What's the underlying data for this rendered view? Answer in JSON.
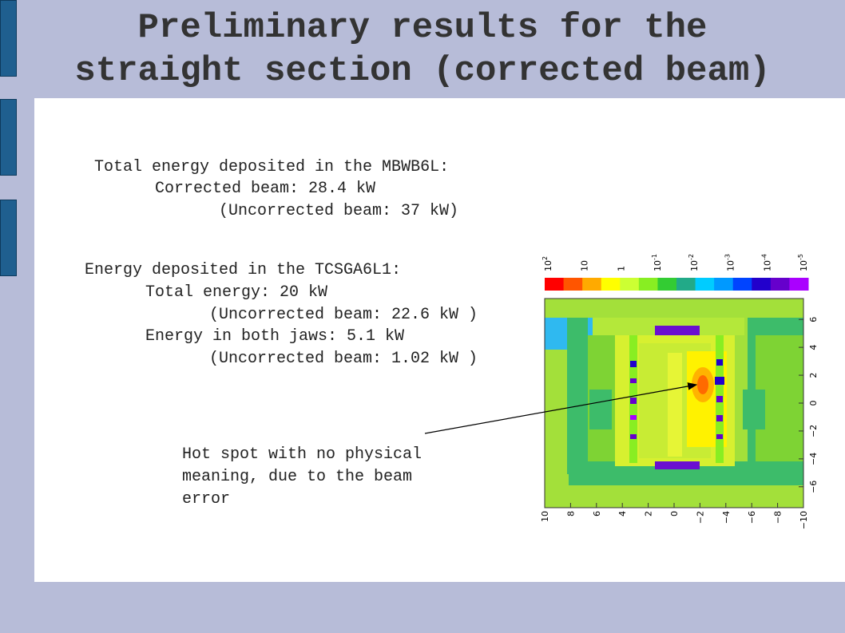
{
  "slide": {
    "title_line1": "Preliminary results for the",
    "title_line2": "straight section (corrected beam)"
  },
  "mbwb": {
    "heading": "Total energy deposited in the MBWB6L:",
    "corrected": "Corrected beam: 28.4 kW",
    "uncorrected": "(Uncorrected beam: 37 kW)"
  },
  "tcsga": {
    "heading": "Energy deposited in the TCSGA6L1:",
    "total": "Total energy: 20 kW",
    "total_uncorrected": "(Uncorrected beam: 22.6 kW )",
    "jaws": "Energy in both jaws: 5.1 kW",
    "jaws_uncorrected": "(Uncorrected beam: 1.02 kW )"
  },
  "annotation": {
    "line1": "Hot spot with no physical",
    "line2": "meaning, due to the beam",
    "line3": "error"
  },
  "colors": {
    "background": "#b7bcd8",
    "sidebar": "#1f5f8f",
    "content": "#ffffff",
    "title": "#333333"
  },
  "chart_data": {
    "type": "heatmap",
    "title": "",
    "colorbar": {
      "ticks": [
        "10^2",
        "10",
        "1",
        "10^-1",
        "10^-2",
        "10^-3",
        "10^-4",
        "10^-5"
      ],
      "colors": [
        "#ff0000",
        "#ff5500",
        "#ffaa00",
        "#ffff00",
        "#ccff33",
        "#88ee22",
        "#33cc33",
        "#22aa88",
        "#00ccff",
        "#0099ff",
        "#0044ff",
        "#2200cc",
        "#6600cc",
        "#aa00ff"
      ]
    },
    "x_ticks": [
      "10",
      "8",
      "6",
      "4",
      "2",
      "0",
      "−2",
      "−4",
      "−6",
      "−8",
      "−10"
    ],
    "y_ticks": [
      "6",
      "4",
      "2",
      "0",
      "−2",
      "−4",
      "−6"
    ],
    "xlim": [
      10,
      -10
    ],
    "ylim": [
      -7.5,
      7.5
    ],
    "grid": false,
    "annotation": "Hot spot with no physical meaning, due to the beam error"
  }
}
